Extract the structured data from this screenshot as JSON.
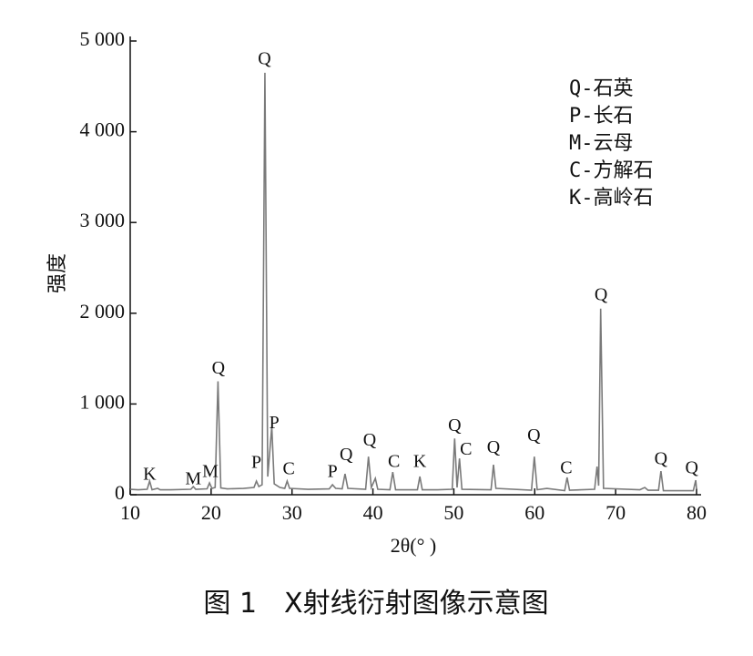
{
  "chart_data": {
    "type": "line",
    "caption": "图 1　X射线衍射图像示意图",
    "x_label": "2θ(° )",
    "y_label": "强度",
    "xlim": [
      10,
      80
    ],
    "xticks": [
      10,
      20,
      30,
      40,
      50,
      60,
      70,
      80
    ],
    "ylim": [
      0,
      5000
    ],
    "yticks": [
      0,
      {
        "value": 1000,
        "label": "1 000"
      },
      {
        "value": 2000,
        "label": "2 000"
      },
      {
        "value": 3000,
        "label": "3 000"
      },
      {
        "value": 4000,
        "label": "4 000"
      },
      {
        "value": 5000,
        "label": "5 000"
      }
    ],
    "legend": [
      "Q-石英",
      "P-长石",
      "M-云母",
      "C-方解石",
      "K-高岭石"
    ],
    "series": [
      {
        "color": "#7a7a7a",
        "x": [
          10,
          11,
          12.1,
          12.4,
          12.7,
          13.4,
          13.7,
          15,
          17.5,
          17.8,
          18.1,
          19.5,
          19.8,
          20.1,
          20.5,
          20.85,
          21.2,
          22,
          24,
          25.3,
          25.6,
          25.9,
          26.3,
          26.65,
          27.0,
          27.5,
          27.8,
          28.5,
          29.1,
          29.4,
          29.7,
          32,
          34.6,
          35.0,
          35.4,
          36.2,
          36.55,
          36.9,
          39.1,
          39.45,
          39.8,
          40.3,
          40.6,
          42.1,
          42.45,
          42.8,
          45.5,
          45.8,
          46.1,
          48,
          49.8,
          50.1,
          50.4,
          50.7,
          51.0,
          54.6,
          54.9,
          55.2,
          59.6,
          59.95,
          60.3,
          61.5,
          63.7,
          64.0,
          64.3,
          67.4,
          67.7,
          67.9,
          68.15,
          68.5,
          73,
          73.6,
          74,
          75.3,
          75.6,
          75.9,
          79.6,
          79.9,
          80
        ],
        "values": [
          60,
          55,
          60,
          150,
          55,
          70,
          55,
          55,
          60,
          90,
          60,
          65,
          130,
          70,
          80,
          1250,
          75,
          65,
          70,
          80,
          150,
          90,
          110,
          4650,
          200,
          750,
          120,
          80,
          70,
          150,
          70,
          60,
          65,
          110,
          70,
          65,
          230,
          70,
          60,
          420,
          80,
          180,
          60,
          55,
          250,
          55,
          55,
          200,
          55,
          55,
          60,
          620,
          80,
          400,
          60,
          55,
          330,
          70,
          50,
          420,
          55,
          70,
          45,
          190,
          50,
          60,
          310,
          100,
          2050,
          70,
          55,
          80,
          50,
          50,
          260,
          45,
          45,
          160,
          60
        ]
      }
    ],
    "annotations": [
      {
        "text": "K",
        "x": 12.4,
        "y": 210
      },
      {
        "text": "M",
        "x": 17.8,
        "y": 160
      },
      {
        "text": "M",
        "x": 19.9,
        "y": 240
      },
      {
        "text": "Q",
        "x": 20.9,
        "y": 1380
      },
      {
        "text": "P",
        "x": 25.6,
        "y": 340
      },
      {
        "text": "Q",
        "x": 26.6,
        "y": 4790
      },
      {
        "text": "P",
        "x": 27.8,
        "y": 780
      },
      {
        "text": "C",
        "x": 29.6,
        "y": 270
      },
      {
        "text": "P",
        "x": 35.0,
        "y": 240
      },
      {
        "text": "Q",
        "x": 36.7,
        "y": 430
      },
      {
        "text": "Q",
        "x": 39.6,
        "y": 590
      },
      {
        "text": "C",
        "x": 42.6,
        "y": 350
      },
      {
        "text": "K",
        "x": 45.8,
        "y": 350
      },
      {
        "text": "Q",
        "x": 50.1,
        "y": 750
      },
      {
        "text": "C",
        "x": 51.5,
        "y": 490
      },
      {
        "text": "Q",
        "x": 54.9,
        "y": 510
      },
      {
        "text": "Q",
        "x": 59.9,
        "y": 640
      },
      {
        "text": "C",
        "x": 63.9,
        "y": 280
      },
      {
        "text": "Q",
        "x": 68.2,
        "y": 2190
      },
      {
        "text": "Q",
        "x": 75.6,
        "y": 380
      },
      {
        "text": "Q",
        "x": 79.4,
        "y": 280
      }
    ]
  }
}
